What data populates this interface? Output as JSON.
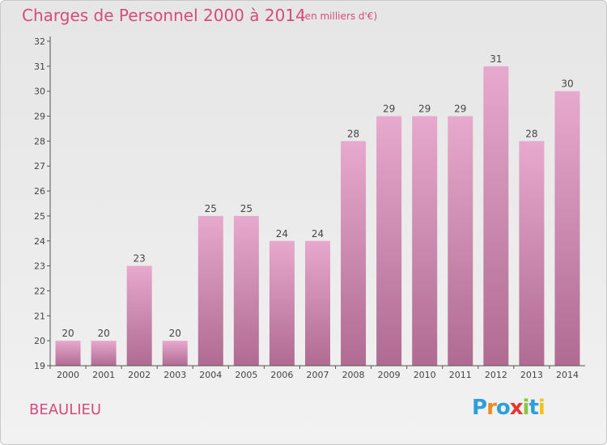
{
  "header": {
    "title": "Charges de Personnel 2000 à 2014",
    "subtitle": "(en milliers d'€)"
  },
  "location": "BEAULIEU",
  "logo": {
    "text": "Proxiti",
    "letter_colors": [
      "#2e9fd8",
      "#f08a1e",
      "#2e9fd8",
      "#e8362e",
      "#8bc53f",
      "#2e9fd8",
      "#f4c21a"
    ]
  },
  "colors": {
    "bar_top": "#e7a9cd",
    "bar_bottom": "#b06b92",
    "title": "#d64a7c",
    "axis": "#555555"
  },
  "chart_data": {
    "type": "bar",
    "title": "Charges de Personnel 2000 à 2014",
    "subtitle": "(en milliers d'€)",
    "categories": [
      "2000",
      "2001",
      "2002",
      "2003",
      "2004",
      "2005",
      "2006",
      "2007",
      "2008",
      "2009",
      "2010",
      "2011",
      "2012",
      "2013",
      "2014"
    ],
    "values": [
      20,
      20,
      23,
      20,
      25,
      25,
      24,
      24,
      28,
      29,
      29,
      29,
      31,
      28,
      30
    ],
    "ylim": [
      19,
      32
    ],
    "yticks": [
      19,
      20,
      21,
      22,
      23,
      24,
      25,
      26,
      27,
      28,
      29,
      30,
      31,
      32
    ],
    "grid": false,
    "xlabel": "",
    "ylabel": ""
  }
}
